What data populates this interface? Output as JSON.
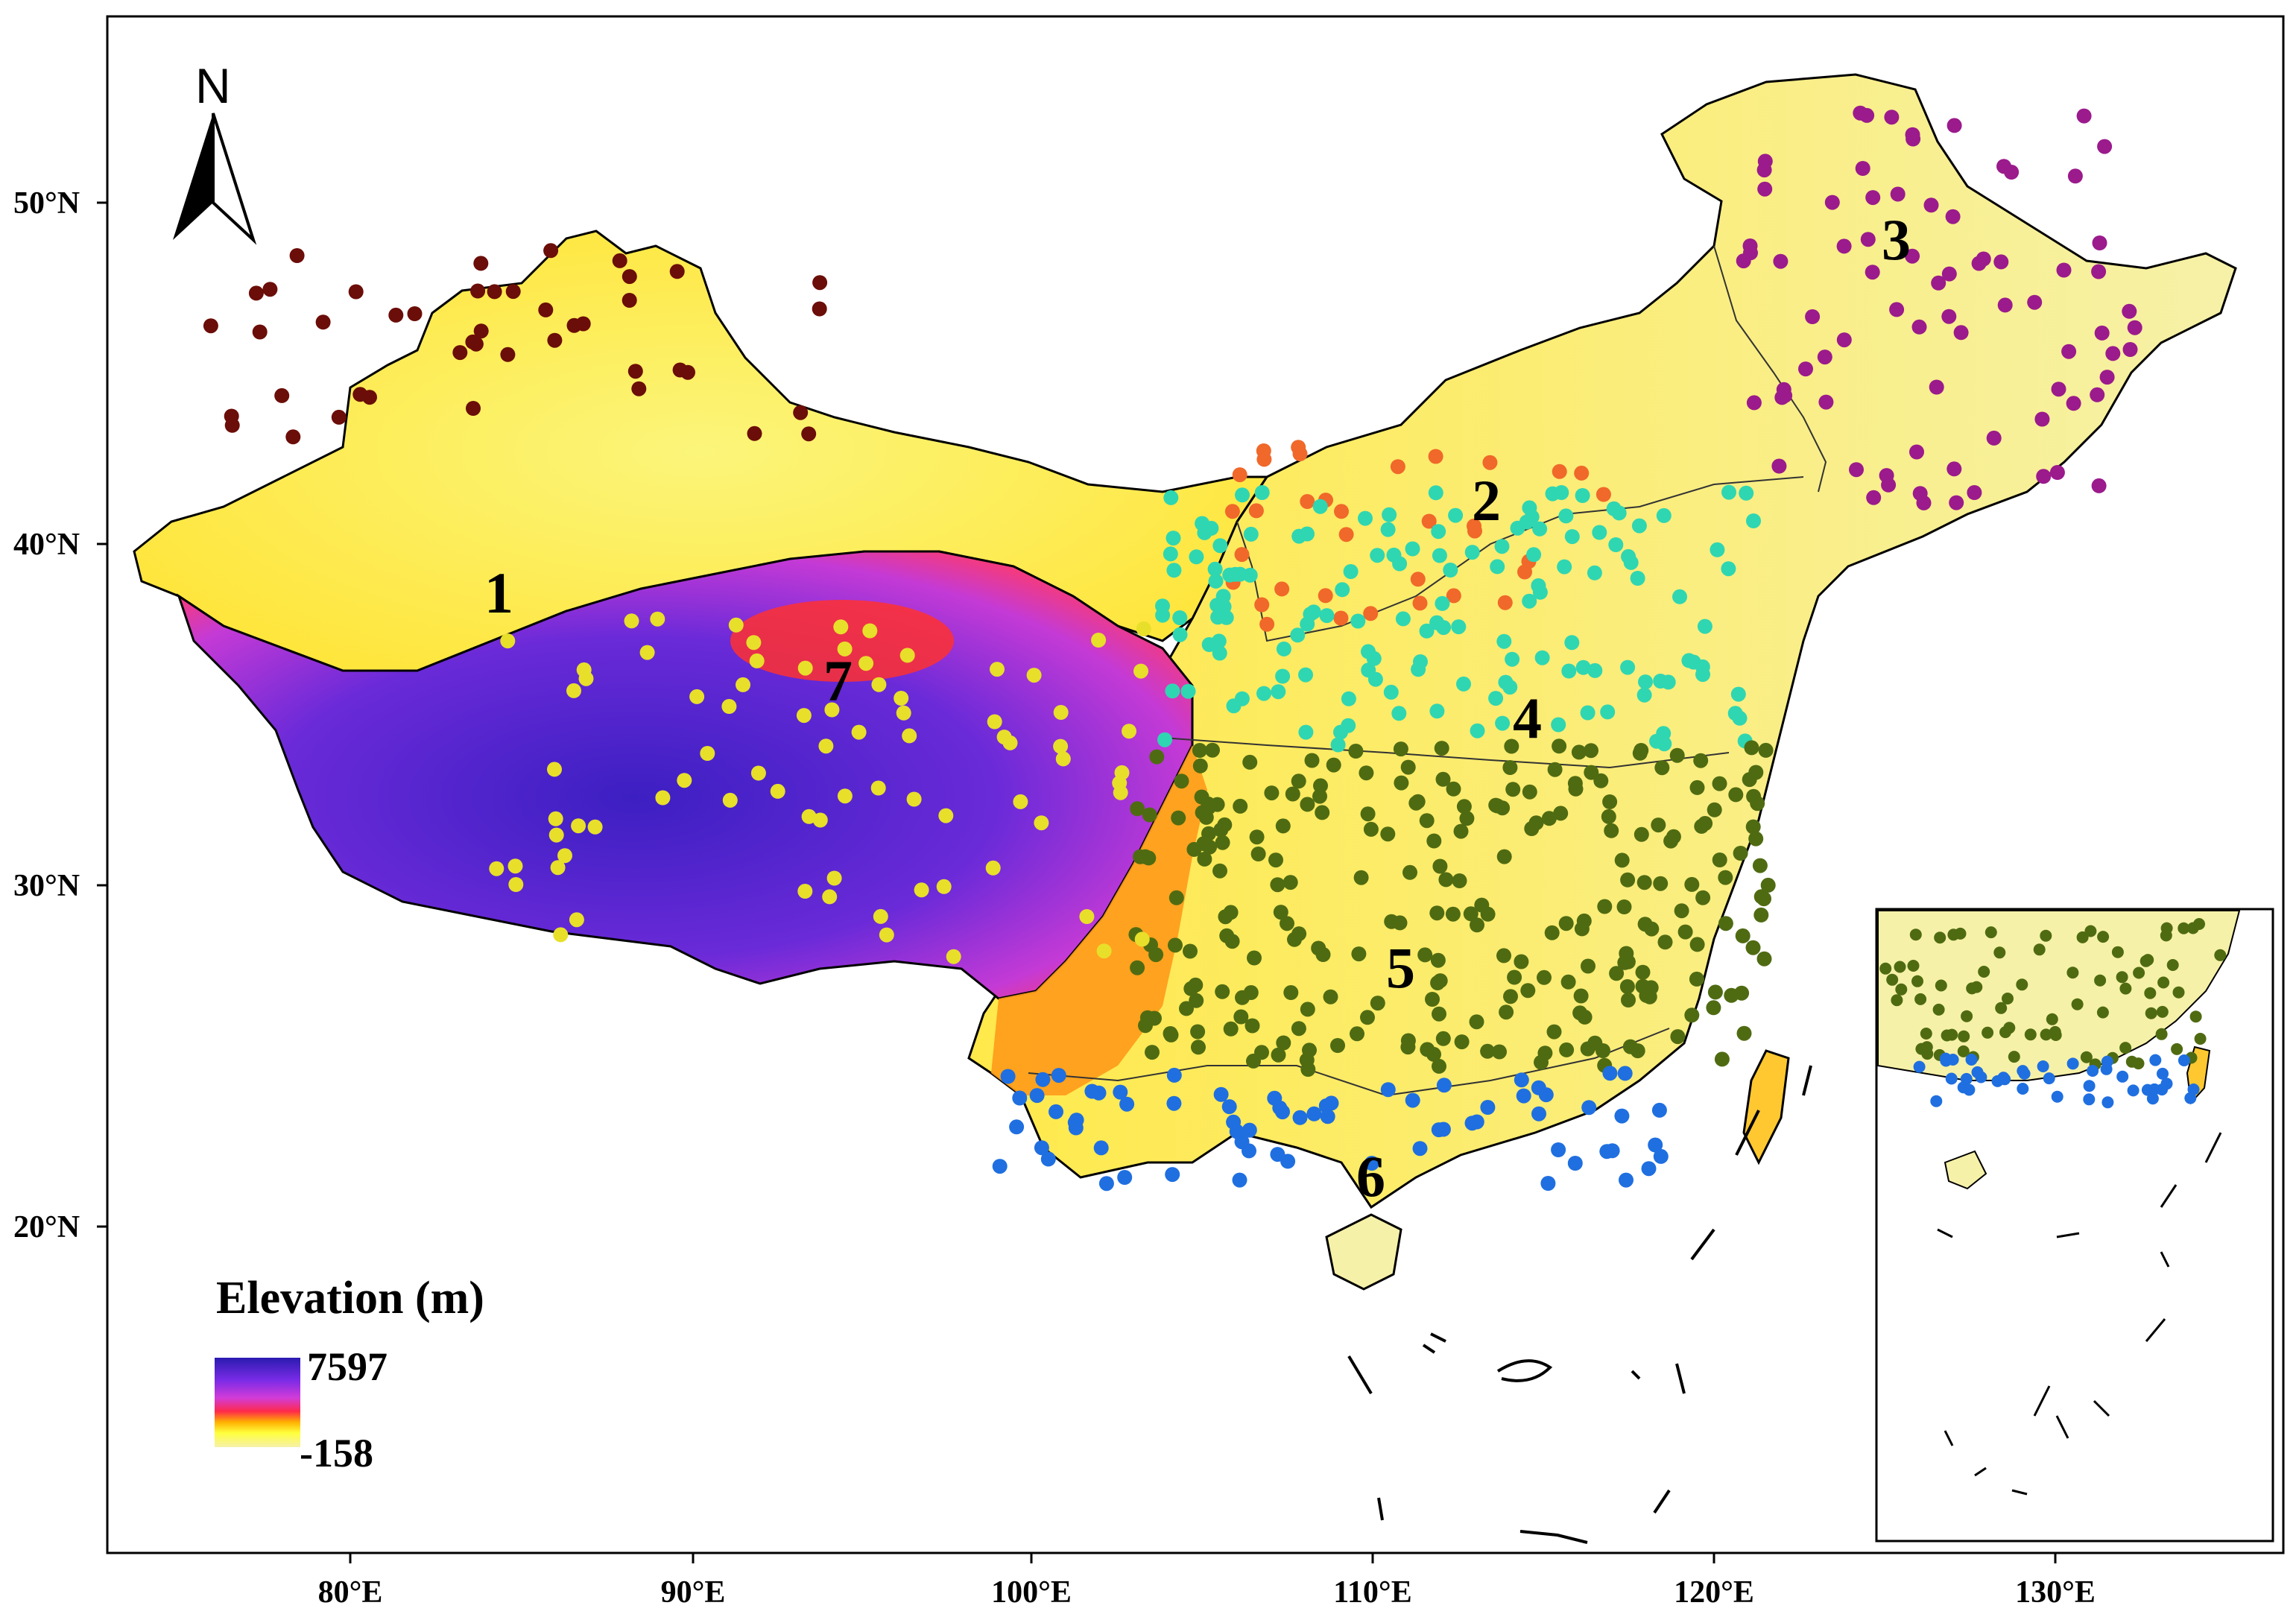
{
  "axes": {
    "lon_ticks": [
      "80°E",
      "90°E",
      "100°E",
      "110°E",
      "120°E",
      "130°E"
    ],
    "lat_ticks": [
      "50°N",
      "40°N",
      "30°N",
      "20°N"
    ]
  },
  "north_arrow": {
    "label": "N",
    "icon": "north-arrow-icon"
  },
  "legend": {
    "title": "Elevation (m)",
    "max": "7597",
    "min": "-158",
    "colors": [
      "#2a1bb0",
      "#7a2be6",
      "#d23cd8",
      "#ff2a4a",
      "#ffb000",
      "#ffff3c",
      "#f6f1a8"
    ]
  },
  "regions": [
    {
      "id": "1",
      "label": "1",
      "color": "#6b0d08"
    },
    {
      "id": "2",
      "label": "2",
      "color": "#f0682a"
    },
    {
      "id": "3",
      "label": "3",
      "color": "#9b1a8c"
    },
    {
      "id": "4",
      "label": "4",
      "color": "#2fd6b2"
    },
    {
      "id": "5",
      "label": "5",
      "color": "#4f6b12"
    },
    {
      "id": "6",
      "label": "6",
      "color": "#1f6fe0"
    },
    {
      "id": "7",
      "label": "7",
      "color": "#e8df2a"
    }
  ]
}
